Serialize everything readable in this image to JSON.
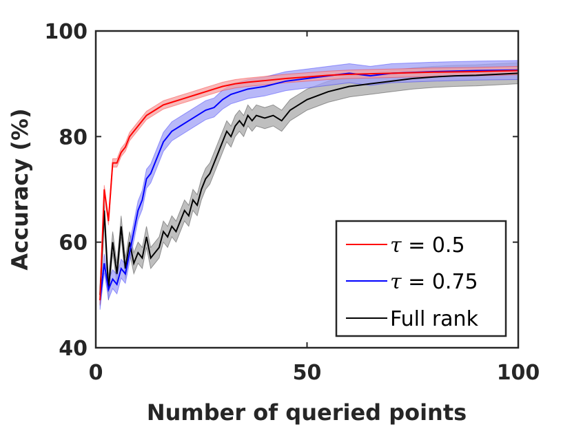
{
  "chart_data": {
    "type": "line",
    "title": "",
    "xlabel": "Number of queried points",
    "ylabel": "Accuracy (%)",
    "xlim": [
      0,
      100
    ],
    "ylim": [
      40,
      100
    ],
    "xticks": [
      0,
      50,
      100
    ],
    "yticks": [
      40,
      60,
      80,
      100
    ],
    "grid": false,
    "legend_position": "bottom-right",
    "series": [
      {
        "name": "τ = 0.5",
        "symbol": "τ",
        "suffix": " = 0.5",
        "color": "#ff0000",
        "band_color": "#f5a0a0",
        "points": [
          [
            1,
            49
          ],
          [
            2,
            70
          ],
          [
            3,
            64
          ],
          [
            4,
            75
          ],
          [
            5,
            75
          ],
          [
            6,
            77
          ],
          [
            7,
            78
          ],
          [
            8,
            80
          ],
          [
            9,
            81
          ],
          [
            10,
            82
          ],
          [
            12,
            84
          ],
          [
            14,
            85
          ],
          [
            16,
            86
          ],
          [
            18,
            86.5
          ],
          [
            20,
            87
          ],
          [
            22,
            87.5
          ],
          [
            24,
            88
          ],
          [
            26,
            88.5
          ],
          [
            28,
            89
          ],
          [
            30,
            89.5
          ],
          [
            33,
            90
          ],
          [
            36,
            90.3
          ],
          [
            40,
            90.6
          ],
          [
            45,
            91
          ],
          [
            50,
            91.3
          ],
          [
            55,
            91.6
          ],
          [
            60,
            91.8
          ],
          [
            70,
            92
          ],
          [
            80,
            92.2
          ],
          [
            90,
            92.3
          ],
          [
            100,
            92.5
          ]
        ],
        "band": 0.8
      },
      {
        "name": "τ = 0.75",
        "symbol": "τ",
        "suffix": " = 0.75",
        "color": "#0000ff",
        "band_color": "#a0a0f5",
        "points": [
          [
            1,
            49
          ],
          [
            2,
            56
          ],
          [
            3,
            51
          ],
          [
            4,
            53
          ],
          [
            5,
            52
          ],
          [
            6,
            55
          ],
          [
            7,
            54
          ],
          [
            8,
            58
          ],
          [
            9,
            62
          ],
          [
            10,
            66
          ],
          [
            11,
            68
          ],
          [
            12,
            72
          ],
          [
            13,
            73
          ],
          [
            14,
            75
          ],
          [
            15,
            77
          ],
          [
            16,
            79
          ],
          [
            17,
            80
          ],
          [
            18,
            81
          ],
          [
            20,
            82
          ],
          [
            22,
            83
          ],
          [
            24,
            84
          ],
          [
            26,
            85
          ],
          [
            28,
            85.5
          ],
          [
            30,
            87
          ],
          [
            32,
            88
          ],
          [
            34,
            88.5
          ],
          [
            36,
            89
          ],
          [
            40,
            89.5
          ],
          [
            45,
            90.5
          ],
          [
            50,
            91
          ],
          [
            55,
            91.5
          ],
          [
            60,
            92
          ],
          [
            65,
            91.5
          ],
          [
            70,
            92
          ],
          [
            80,
            92.3
          ],
          [
            90,
            92.5
          ],
          [
            100,
            92.6
          ]
        ],
        "band": 1.8
      },
      {
        "name": "Full rank",
        "symbol": "",
        "suffix": "Full rank",
        "color": "#000000",
        "band_color": "#a9a9a9",
        "points": [
          [
            1,
            50
          ],
          [
            2,
            66
          ],
          [
            3,
            51
          ],
          [
            4,
            60
          ],
          [
            5,
            54
          ],
          [
            6,
            63
          ],
          [
            7,
            55
          ],
          [
            8,
            60
          ],
          [
            9,
            56
          ],
          [
            10,
            58
          ],
          [
            11,
            57
          ],
          [
            12,
            61
          ],
          [
            13,
            57
          ],
          [
            14,
            58
          ],
          [
            15,
            59
          ],
          [
            16,
            62
          ],
          [
            17,
            61
          ],
          [
            18,
            63
          ],
          [
            19,
            62
          ],
          [
            20,
            64
          ],
          [
            21,
            66
          ],
          [
            22,
            65
          ],
          [
            23,
            68
          ],
          [
            24,
            67
          ],
          [
            25,
            70
          ],
          [
            26,
            72
          ],
          [
            27,
            73
          ],
          [
            28,
            75
          ],
          [
            29,
            77
          ],
          [
            30,
            79
          ],
          [
            31,
            81
          ],
          [
            32,
            80
          ],
          [
            33,
            82
          ],
          [
            34,
            83
          ],
          [
            35,
            82
          ],
          [
            36,
            84
          ],
          [
            37,
            83
          ],
          [
            38,
            84
          ],
          [
            40,
            83.5
          ],
          [
            42,
            84
          ],
          [
            44,
            83
          ],
          [
            46,
            85
          ],
          [
            48,
            86
          ],
          [
            50,
            87
          ],
          [
            55,
            88.5
          ],
          [
            60,
            89.5
          ],
          [
            65,
            90
          ],
          [
            70,
            90.5
          ],
          [
            75,
            91
          ],
          [
            80,
            91.3
          ],
          [
            85,
            91.5
          ],
          [
            90,
            91.6
          ],
          [
            95,
            91.8
          ],
          [
            100,
            92
          ]
        ],
        "band": 2.0
      }
    ]
  }
}
